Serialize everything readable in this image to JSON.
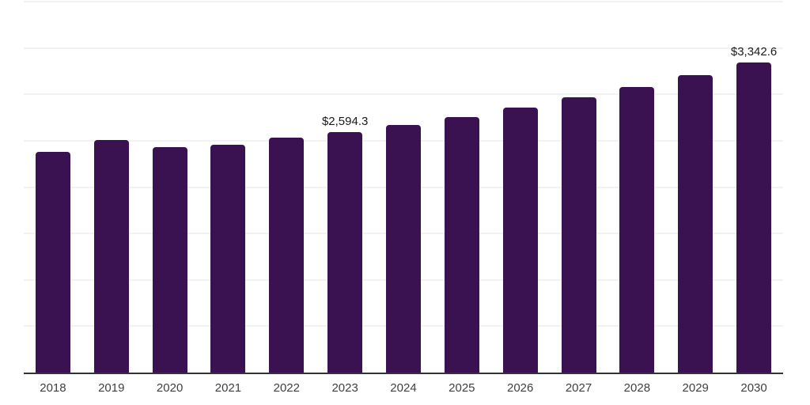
{
  "chart_data": {
    "type": "bar",
    "categories": [
      "2018",
      "2019",
      "2020",
      "2021",
      "2022",
      "2023",
      "2024",
      "2025",
      "2026",
      "2027",
      "2028",
      "2029",
      "2030"
    ],
    "values": [
      2380,
      2505,
      2430,
      2455,
      2535,
      2594.3,
      2670,
      2755,
      2860,
      2970,
      3080,
      3210,
      3342.6
    ],
    "point_labels": [
      "",
      "",
      "",
      "",
      "",
      "$2,594.3",
      "",
      "",
      "",
      "",
      "",
      "",
      "$3,342.6"
    ],
    "title": "",
    "xlabel": "",
    "ylabel": "",
    "ylim": [
      0,
      4000
    ],
    "gridline_step": 500,
    "grid": "horizontal",
    "legend": "none",
    "y_axis_labels_visible": false
  },
  "colors": {
    "background": "#ffffff",
    "bar": "#3A1151",
    "gridline": "#f2f2f2",
    "axis_line": "#333333",
    "tick_text": "#404040",
    "data_label_text": "#1a1a1a"
  }
}
